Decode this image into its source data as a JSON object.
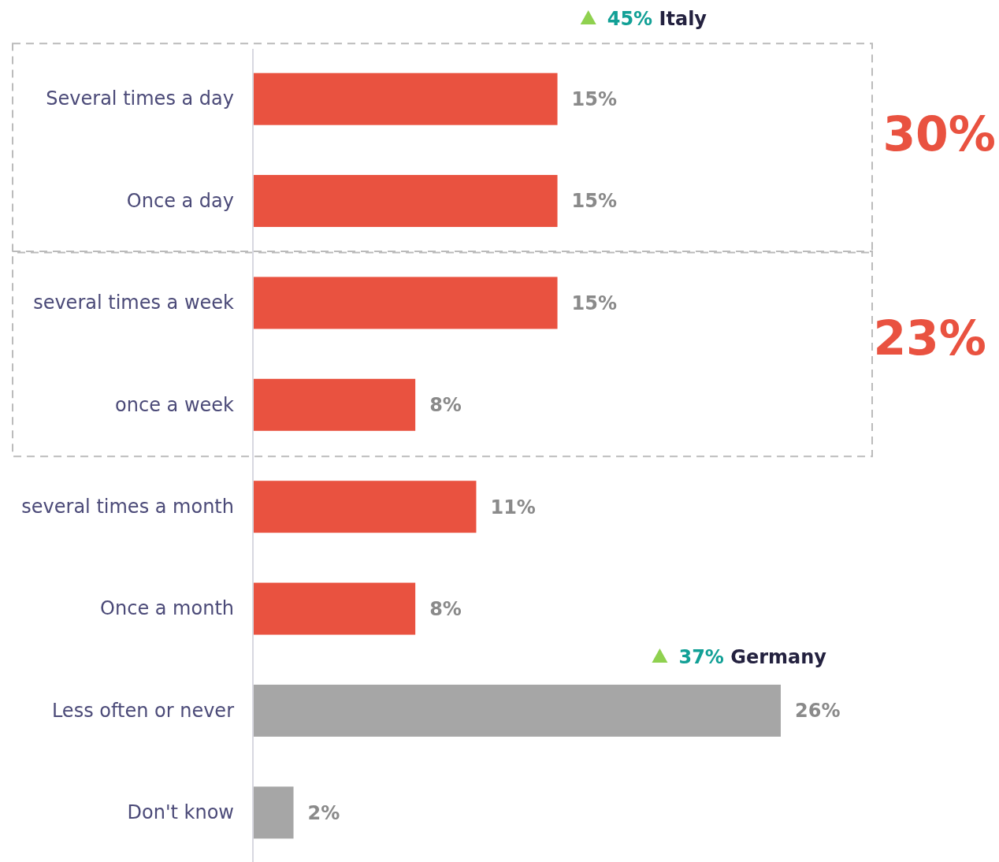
{
  "chart_data": {
    "type": "bar",
    "orientation": "horizontal",
    "categories": [
      "Several times a day",
      "Once a day",
      "several times a week",
      "once a week",
      "several times a month",
      "Once a month",
      "Less often or never",
      "Don't know"
    ],
    "values": [
      15,
      15,
      15,
      8,
      11,
      8,
      26,
      2
    ],
    "colors": [
      "#e95240",
      "#e95240",
      "#e95240",
      "#e95240",
      "#e95240",
      "#e95240",
      "#a6a6a6",
      "#a6a6a6"
    ],
    "value_labels": [
      "15%",
      "15%",
      "15%",
      "8%",
      "11%",
      "8%",
      "26%",
      "2%"
    ],
    "tick_labels": "y",
    "annotations": [
      "45% Italy",
      "37% Germany",
      "30%",
      "23%"
    ]
  }
}
